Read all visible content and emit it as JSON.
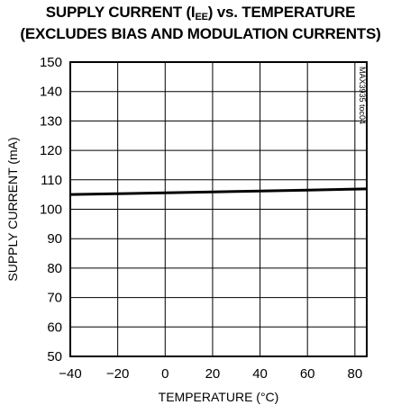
{
  "title": {
    "prefix": "SUPPLY CURRENT (I",
    "subscript": "EE",
    "suffix": ") vs. TEMPERATURE",
    "line2": "(EXCLUDES BIAS AND MODULATION CURRENTS)"
  },
  "side_label": "MAX3935 toc04",
  "chart_data": {
    "type": "line",
    "title": "SUPPLY CURRENT (IEE) vs. TEMPERATURE (EXCLUDES BIAS AND MODULATION CURRENTS)",
    "xlabel": "TEMPERATURE (°C)",
    "ylabel": "SUPPLY CURRENT (mA)",
    "xlim": [
      -40,
      85
    ],
    "ylim": [
      50,
      150
    ],
    "xticks": [
      -40,
      -20,
      0,
      20,
      40,
      60,
      80
    ],
    "yticks": [
      50,
      60,
      70,
      80,
      90,
      100,
      110,
      120,
      130,
      140,
      150
    ],
    "grid": true,
    "series": [
      {
        "x": [
          -40,
          -20,
          0,
          20,
          40,
          60,
          85
        ],
        "y": [
          105.0,
          105.3,
          105.6,
          105.9,
          106.2,
          106.5,
          106.9
        ]
      }
    ]
  }
}
